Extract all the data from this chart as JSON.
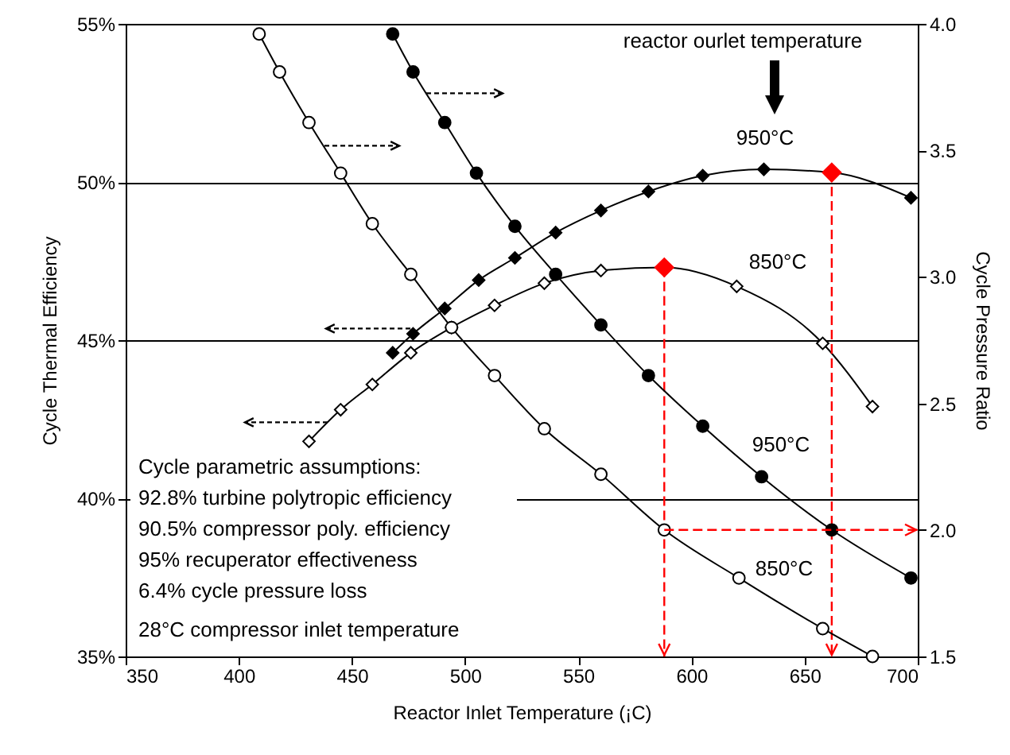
{
  "chart_data": {
    "type": "line",
    "xlabel": "Reactor Inlet Temperature (¡C)",
    "ylabel": "Cycle Thermal Efficiency",
    "y2label": "Cycle Pressure Ratio",
    "xlim": [
      350,
      700
    ],
    "xticks": [
      350,
      400,
      450,
      500,
      550,
      600,
      650,
      700
    ],
    "ylim": [
      35,
      55
    ],
    "yticks": [
      {
        "value": 35,
        "label": "35%"
      },
      {
        "value": 40,
        "label": "40%"
      },
      {
        "value": 45,
        "label": "45%"
      },
      {
        "value": 50,
        "label": "50%"
      },
      {
        "value": 55,
        "label": "55%"
      }
    ],
    "y2lim": [
      1.5,
      4
    ],
    "y2ticks": [
      1.5,
      {
        "value": 2,
        "label": "2.0"
      },
      2.5,
      {
        "value": 3,
        "label": "3.0"
      },
      3.5,
      {
        "value": 4,
        "label": "4.0"
      }
    ],
    "grid": "y",
    "line_style": "solid",
    "ref_lines": [
      {
        "axis": "x",
        "value": 588,
        "color": "#ff0000",
        "line_style": "dashed"
      },
      {
        "axis": "x",
        "value": 662,
        "color": "#ff0000",
        "line_style": "dashed"
      },
      {
        "axis": "y2",
        "value": 2.0,
        "color": "#ff0000",
        "line_style": "dashed"
      }
    ],
    "series": [
      {
        "color": "#000000",
        "marker": "diamond",
        "x": [
          468,
          477,
          491,
          506,
          522,
          540,
          560,
          581,
          605,
          632,
          662,
          697
        ],
        "values": [
          44.6,
          45.2,
          46.0,
          46.9,
          47.6,
          48.4,
          49.1,
          49.7,
          50.2,
          50.4,
          50.3,
          49.5
        ],
        "colors": [
          "#000000",
          "#000000",
          "#000000",
          "#000000",
          "#000000",
          "#000000",
          "#000000",
          "#000000",
          "#000000",
          "#000000",
          "#ff0000",
          "#000000"
        ]
      },
      {
        "color": "#000000",
        "marker": "diamond",
        "x": [
          431,
          445,
          459,
          476,
          494,
          513,
          535,
          560,
          588,
          620,
          658,
          680
        ],
        "values": [
          41.8,
          42.8,
          43.6,
          44.6,
          45.4,
          46.1,
          46.8,
          47.2,
          47.3,
          46.7,
          44.9,
          42.9
        ],
        "colors": [
          "#ffffff",
          "#ffffff",
          "#ffffff",
          "#ffffff",
          "#ffffff",
          "#ffffff",
          "#ffffff",
          "#ffffff",
          "#ff0000",
          "#ffffff",
          "#ffffff",
          "#ffffff"
        ]
      },
      {
        "color": "#000000",
        "marker": "circle",
        "axis": "y2",
        "x": [
          468,
          477,
          491,
          505,
          522,
          540,
          560,
          581,
          605,
          631,
          662,
          697
        ],
        "values": [
          3.96,
          3.81,
          3.61,
          3.41,
          3.2,
          3.01,
          2.81,
          2.61,
          2.41,
          2.21,
          2.0,
          1.81
        ]
      },
      {
        "color": "#000000",
        "marker": "circle",
        "axis": "y2",
        "x": [
          409,
          418,
          431,
          445,
          459,
          476,
          494,
          513,
          535,
          560,
          588,
          621,
          658,
          680
        ],
        "values": [
          3.96,
          3.81,
          3.61,
          3.41,
          3.21,
          3.01,
          2.8,
          2.61,
          2.4,
          2.22,
          2.0,
          1.81,
          1.61,
          1.5
        ],
        "colors": [
          "#ffffff",
          "#ffffff",
          "#ffffff",
          "#ffffff",
          "#ffffff",
          "#ffffff",
          "#ffffff",
          "#ffffff",
          "#ffffff",
          "#ffffff",
          "#ffffff",
          "#ffffff",
          "#ffffff",
          "#ffffff"
        ]
      }
    ],
    "annotations": [
      "reactor ourlet temperature",
      "950°C",
      "850°C",
      "950°C",
      "850°C",
      "Cycle parametric assumptions:",
      "92.8% turbine polytropic efficiency",
      "90.5% compressor poly. efficiency",
      "95% recuperator effectiveness",
      "6.4% cycle pressure loss",
      "28°C compressor inlet temperature"
    ]
  }
}
